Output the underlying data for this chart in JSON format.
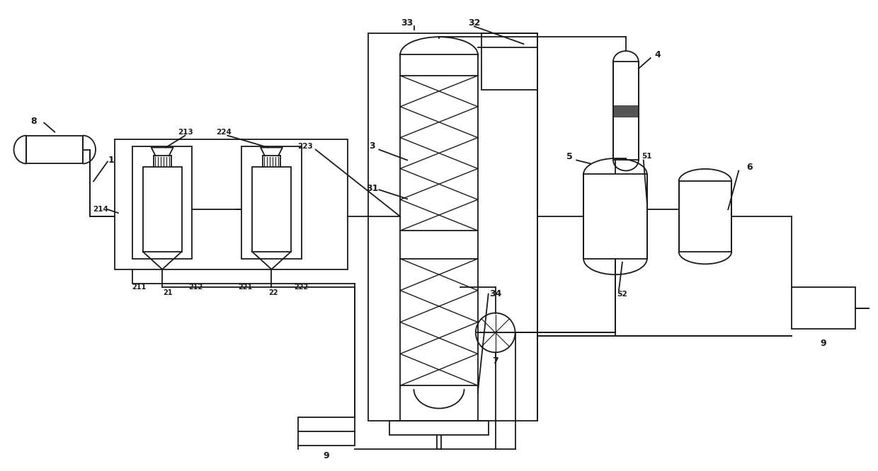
{
  "bg_color": "#ffffff",
  "lc": "#1a1a1a",
  "lw": 1.3,
  "fig_width": 12.4,
  "fig_height": 6.66,
  "dpi": 100
}
